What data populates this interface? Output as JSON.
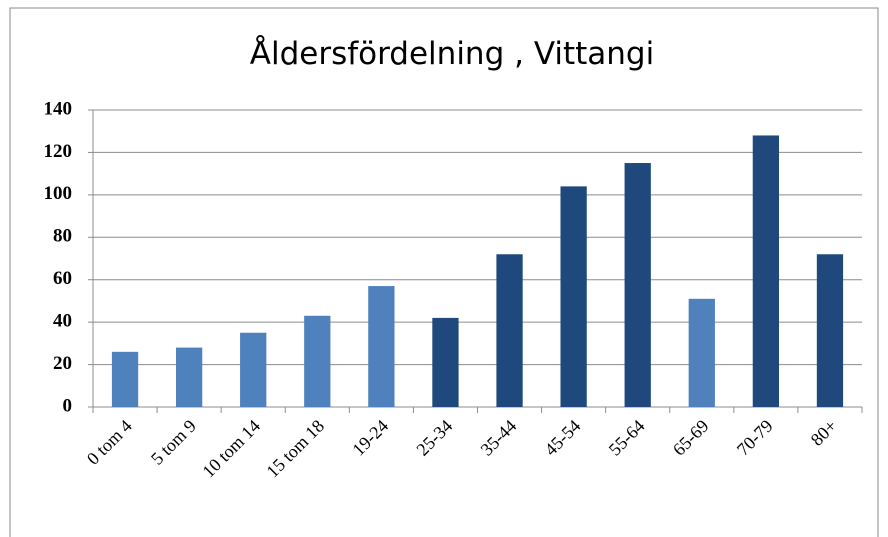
{
  "chart_data": {
    "type": "bar",
    "title": "Åldersfördelning , Vittangi",
    "categories": [
      "0 tom 4",
      "5 tom 9",
      "10 tom 14",
      "15 tom 18",
      "19-24",
      "25-34",
      "35-44",
      "45-54",
      "55-64",
      "65-69",
      "70-79",
      "80+"
    ],
    "values": [
      26,
      28,
      35,
      43,
      57,
      42,
      72,
      104,
      115,
      51,
      128,
      72
    ],
    "colors": [
      "#4f81bd",
      "#4f81bd",
      "#4f81bd",
      "#4f81bd",
      "#4f81bd",
      "#1f497d",
      "#1f497d",
      "#1f497d",
      "#1f497d",
      "#4f81bd",
      "#1f497d",
      "#1f497d"
    ],
    "ylim": [
      0,
      140
    ],
    "yticks": [
      0,
      20,
      40,
      60,
      80,
      100,
      120,
      140
    ],
    "grid": true
  }
}
